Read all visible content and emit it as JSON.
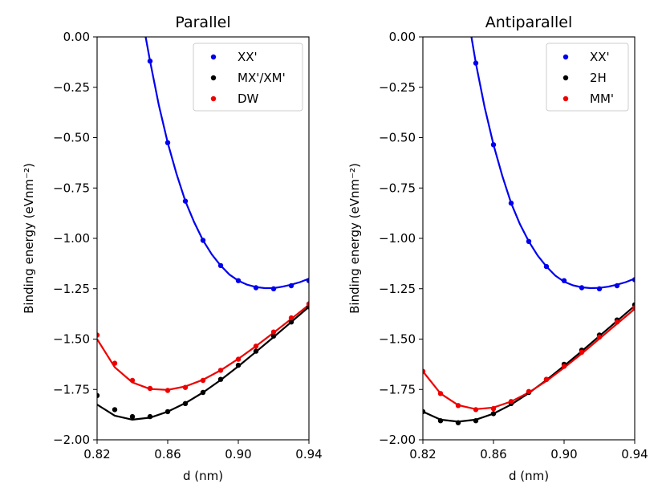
{
  "chart_data": [
    {
      "type": "scatter",
      "title": "Parallel",
      "xlabel": "d (nm)",
      "ylabel": "Binding energy (eVnm⁻²)",
      "xlim": [
        0.82,
        0.94
      ],
      "ylim": [
        -2.0,
        0.0
      ],
      "xticks": [
        "0.82",
        "0.86",
        "0.90",
        "0.94"
      ],
      "yticks": [
        "0.00",
        "−0.25",
        "−0.50",
        "−0.75",
        "−1.00",
        "−1.25",
        "−1.50",
        "−1.75",
        "−2.00"
      ],
      "legend_position": "top-right",
      "grid": false,
      "series": [
        {
          "name": "XX'",
          "color": "#0000ee",
          "points": [
            [
              0.85,
              -0.12
            ],
            [
              0.86,
              -0.525
            ],
            [
              0.87,
              -0.815
            ],
            [
              0.88,
              -1.01
            ],
            [
              0.89,
              -1.135
            ],
            [
              0.9,
              -1.21
            ],
            [
              0.91,
              -1.245
            ],
            [
              0.92,
              -1.25
            ],
            [
              0.93,
              -1.235
            ],
            [
              0.94,
              -1.21
            ]
          ],
          "fit": [
            [
              0.8475,
              0.0
            ],
            [
              0.85,
              -0.12
            ],
            [
              0.855,
              -0.34
            ],
            [
              0.86,
              -0.525
            ],
            [
              0.865,
              -0.68
            ],
            [
              0.87,
              -0.815
            ],
            [
              0.875,
              -0.92
            ],
            [
              0.88,
              -1.01
            ],
            [
              0.885,
              -1.08
            ],
            [
              0.89,
              -1.135
            ],
            [
              0.895,
              -1.18
            ],
            [
              0.9,
              -1.21
            ],
            [
              0.905,
              -1.23
            ],
            [
              0.91,
              -1.242
            ],
            [
              0.915,
              -1.247
            ],
            [
              0.92,
              -1.247
            ],
            [
              0.925,
              -1.24
            ],
            [
              0.93,
              -1.23
            ],
            [
              0.935,
              -1.217
            ],
            [
              0.94,
              -1.2
            ]
          ]
        },
        {
          "name": "MX'/XM'",
          "color": "#000000",
          "points": [
            [
              0.82,
              -1.78
            ],
            [
              0.83,
              -1.85
            ],
            [
              0.84,
              -1.885
            ],
            [
              0.85,
              -1.885
            ],
            [
              0.86,
              -1.86
            ],
            [
              0.87,
              -1.82
            ],
            [
              0.88,
              -1.765
            ],
            [
              0.89,
              -1.7
            ],
            [
              0.9,
              -1.63
            ],
            [
              0.91,
              -1.56
            ],
            [
              0.92,
              -1.485
            ],
            [
              0.93,
              -1.415
            ],
            [
              0.94,
              -1.34
            ]
          ],
          "fit": [
            [
              0.82,
              -1.825
            ],
            [
              0.83,
              -1.88
            ],
            [
              0.84,
              -1.9
            ],
            [
              0.85,
              -1.89
            ],
            [
              0.86,
              -1.86
            ],
            [
              0.87,
              -1.818
            ],
            [
              0.88,
              -1.765
            ],
            [
              0.89,
              -1.703
            ],
            [
              0.9,
              -1.635
            ],
            [
              0.91,
              -1.563
            ],
            [
              0.92,
              -1.49
            ],
            [
              0.93,
              -1.415
            ],
            [
              0.94,
              -1.34
            ]
          ]
        },
        {
          "name": "DW",
          "color": "#ee0000",
          "points": [
            [
              0.82,
              -1.48
            ],
            [
              0.83,
              -1.62
            ],
            [
              0.84,
              -1.705
            ],
            [
              0.85,
              -1.745
            ],
            [
              0.86,
              -1.755
            ],
            [
              0.87,
              -1.74
            ],
            [
              0.88,
              -1.705
            ],
            [
              0.89,
              -1.655
            ],
            [
              0.9,
              -1.6
            ],
            [
              0.91,
              -1.535
            ],
            [
              0.92,
              -1.465
            ],
            [
              0.93,
              -1.395
            ],
            [
              0.94,
              -1.325
            ]
          ],
          "fit": [
            [
              0.82,
              -1.5
            ],
            [
              0.83,
              -1.64
            ],
            [
              0.84,
              -1.715
            ],
            [
              0.85,
              -1.748
            ],
            [
              0.86,
              -1.752
            ],
            [
              0.87,
              -1.735
            ],
            [
              0.88,
              -1.702
            ],
            [
              0.89,
              -1.655
            ],
            [
              0.9,
              -1.598
            ],
            [
              0.91,
              -1.535
            ],
            [
              0.92,
              -1.468
            ],
            [
              0.93,
              -1.4
            ],
            [
              0.94,
              -1.33
            ]
          ]
        }
      ]
    },
    {
      "type": "scatter",
      "title": "Antiparallel",
      "xlabel": "d (nm)",
      "ylabel": "Binding energy (eVnm⁻²)",
      "xlim": [
        0.82,
        0.94
      ],
      "ylim": [
        -2.0,
        0.0
      ],
      "xticks": [
        "0.82",
        "0.86",
        "0.90",
        "0.94"
      ],
      "yticks": [
        "0.00",
        "−0.25",
        "−0.50",
        "−0.75",
        "−1.00",
        "−1.25",
        "−1.50",
        "−1.75",
        "−2.00"
      ],
      "legend_position": "top-right",
      "grid": false,
      "series": [
        {
          "name": "XX'",
          "color": "#0000ee",
          "points": [
            [
              0.85,
              -0.13
            ],
            [
              0.86,
              -0.535
            ],
            [
              0.87,
              -0.825
            ],
            [
              0.88,
              -1.015
            ],
            [
              0.89,
              -1.14
            ],
            [
              0.9,
              -1.21
            ],
            [
              0.91,
              -1.245
            ],
            [
              0.92,
              -1.25
            ],
            [
              0.93,
              -1.235
            ],
            [
              0.94,
              -1.205
            ]
          ],
          "fit": [
            [
              0.8475,
              0.0
            ],
            [
              0.85,
              -0.13
            ],
            [
              0.855,
              -0.35
            ],
            [
              0.86,
              -0.535
            ],
            [
              0.865,
              -0.69
            ],
            [
              0.87,
              -0.825
            ],
            [
              0.875,
              -0.93
            ],
            [
              0.88,
              -1.015
            ],
            [
              0.885,
              -1.085
            ],
            [
              0.89,
              -1.14
            ],
            [
              0.895,
              -1.185
            ],
            [
              0.9,
              -1.215
            ],
            [
              0.905,
              -1.233
            ],
            [
              0.91,
              -1.243
            ],
            [
              0.915,
              -1.247
            ],
            [
              0.92,
              -1.246
            ],
            [
              0.925,
              -1.24
            ],
            [
              0.93,
              -1.23
            ],
            [
              0.935,
              -1.217
            ],
            [
              0.94,
              -1.2
            ]
          ]
        },
        {
          "name": "2H",
          "color": "#000000",
          "points": [
            [
              0.82,
              -1.86
            ],
            [
              0.83,
              -1.905
            ],
            [
              0.84,
              -1.915
            ],
            [
              0.85,
              -1.905
            ],
            [
              0.86,
              -1.87
            ],
            [
              0.87,
              -1.82
            ],
            [
              0.88,
              -1.765
            ],
            [
              0.89,
              -1.7
            ],
            [
              0.9,
              -1.625
            ],
            [
              0.91,
              -1.555
            ],
            [
              0.92,
              -1.48
            ],
            [
              0.93,
              -1.405
            ],
            [
              0.94,
              -1.33
            ]
          ],
          "fit": [
            [
              0.82,
              -1.86
            ],
            [
              0.83,
              -1.9
            ],
            [
              0.84,
              -1.91
            ],
            [
              0.85,
              -1.9
            ],
            [
              0.86,
              -1.87
            ],
            [
              0.87,
              -1.825
            ],
            [
              0.88,
              -1.768
            ],
            [
              0.89,
              -1.703
            ],
            [
              0.9,
              -1.633
            ],
            [
              0.91,
              -1.56
            ],
            [
              0.92,
              -1.485
            ],
            [
              0.93,
              -1.41
            ],
            [
              0.94,
              -1.335
            ]
          ]
        },
        {
          "name": "MM'",
          "color": "#ee0000",
          "points": [
            [
              0.82,
              -1.66
            ],
            [
              0.83,
              -1.77
            ],
            [
              0.84,
              -1.83
            ],
            [
              0.85,
              -1.85
            ],
            [
              0.86,
              -1.845
            ],
            [
              0.87,
              -1.81
            ],
            [
              0.88,
              -1.76
            ],
            [
              0.89,
              -1.7
            ],
            [
              0.9,
              -1.635
            ],
            [
              0.91,
              -1.565
            ],
            [
              0.92,
              -1.49
            ],
            [
              0.93,
              -1.415
            ],
            [
              0.94,
              -1.345
            ]
          ],
          "fit": [
            [
              0.82,
              -1.66
            ],
            [
              0.83,
              -1.77
            ],
            [
              0.84,
              -1.828
            ],
            [
              0.85,
              -1.848
            ],
            [
              0.86,
              -1.84
            ],
            [
              0.87,
              -1.81
            ],
            [
              0.88,
              -1.765
            ],
            [
              0.89,
              -1.708
            ],
            [
              0.9,
              -1.642
            ],
            [
              0.91,
              -1.572
            ],
            [
              0.92,
              -1.498
            ],
            [
              0.93,
              -1.424
            ],
            [
              0.94,
              -1.35
            ]
          ]
        }
      ]
    }
  ]
}
